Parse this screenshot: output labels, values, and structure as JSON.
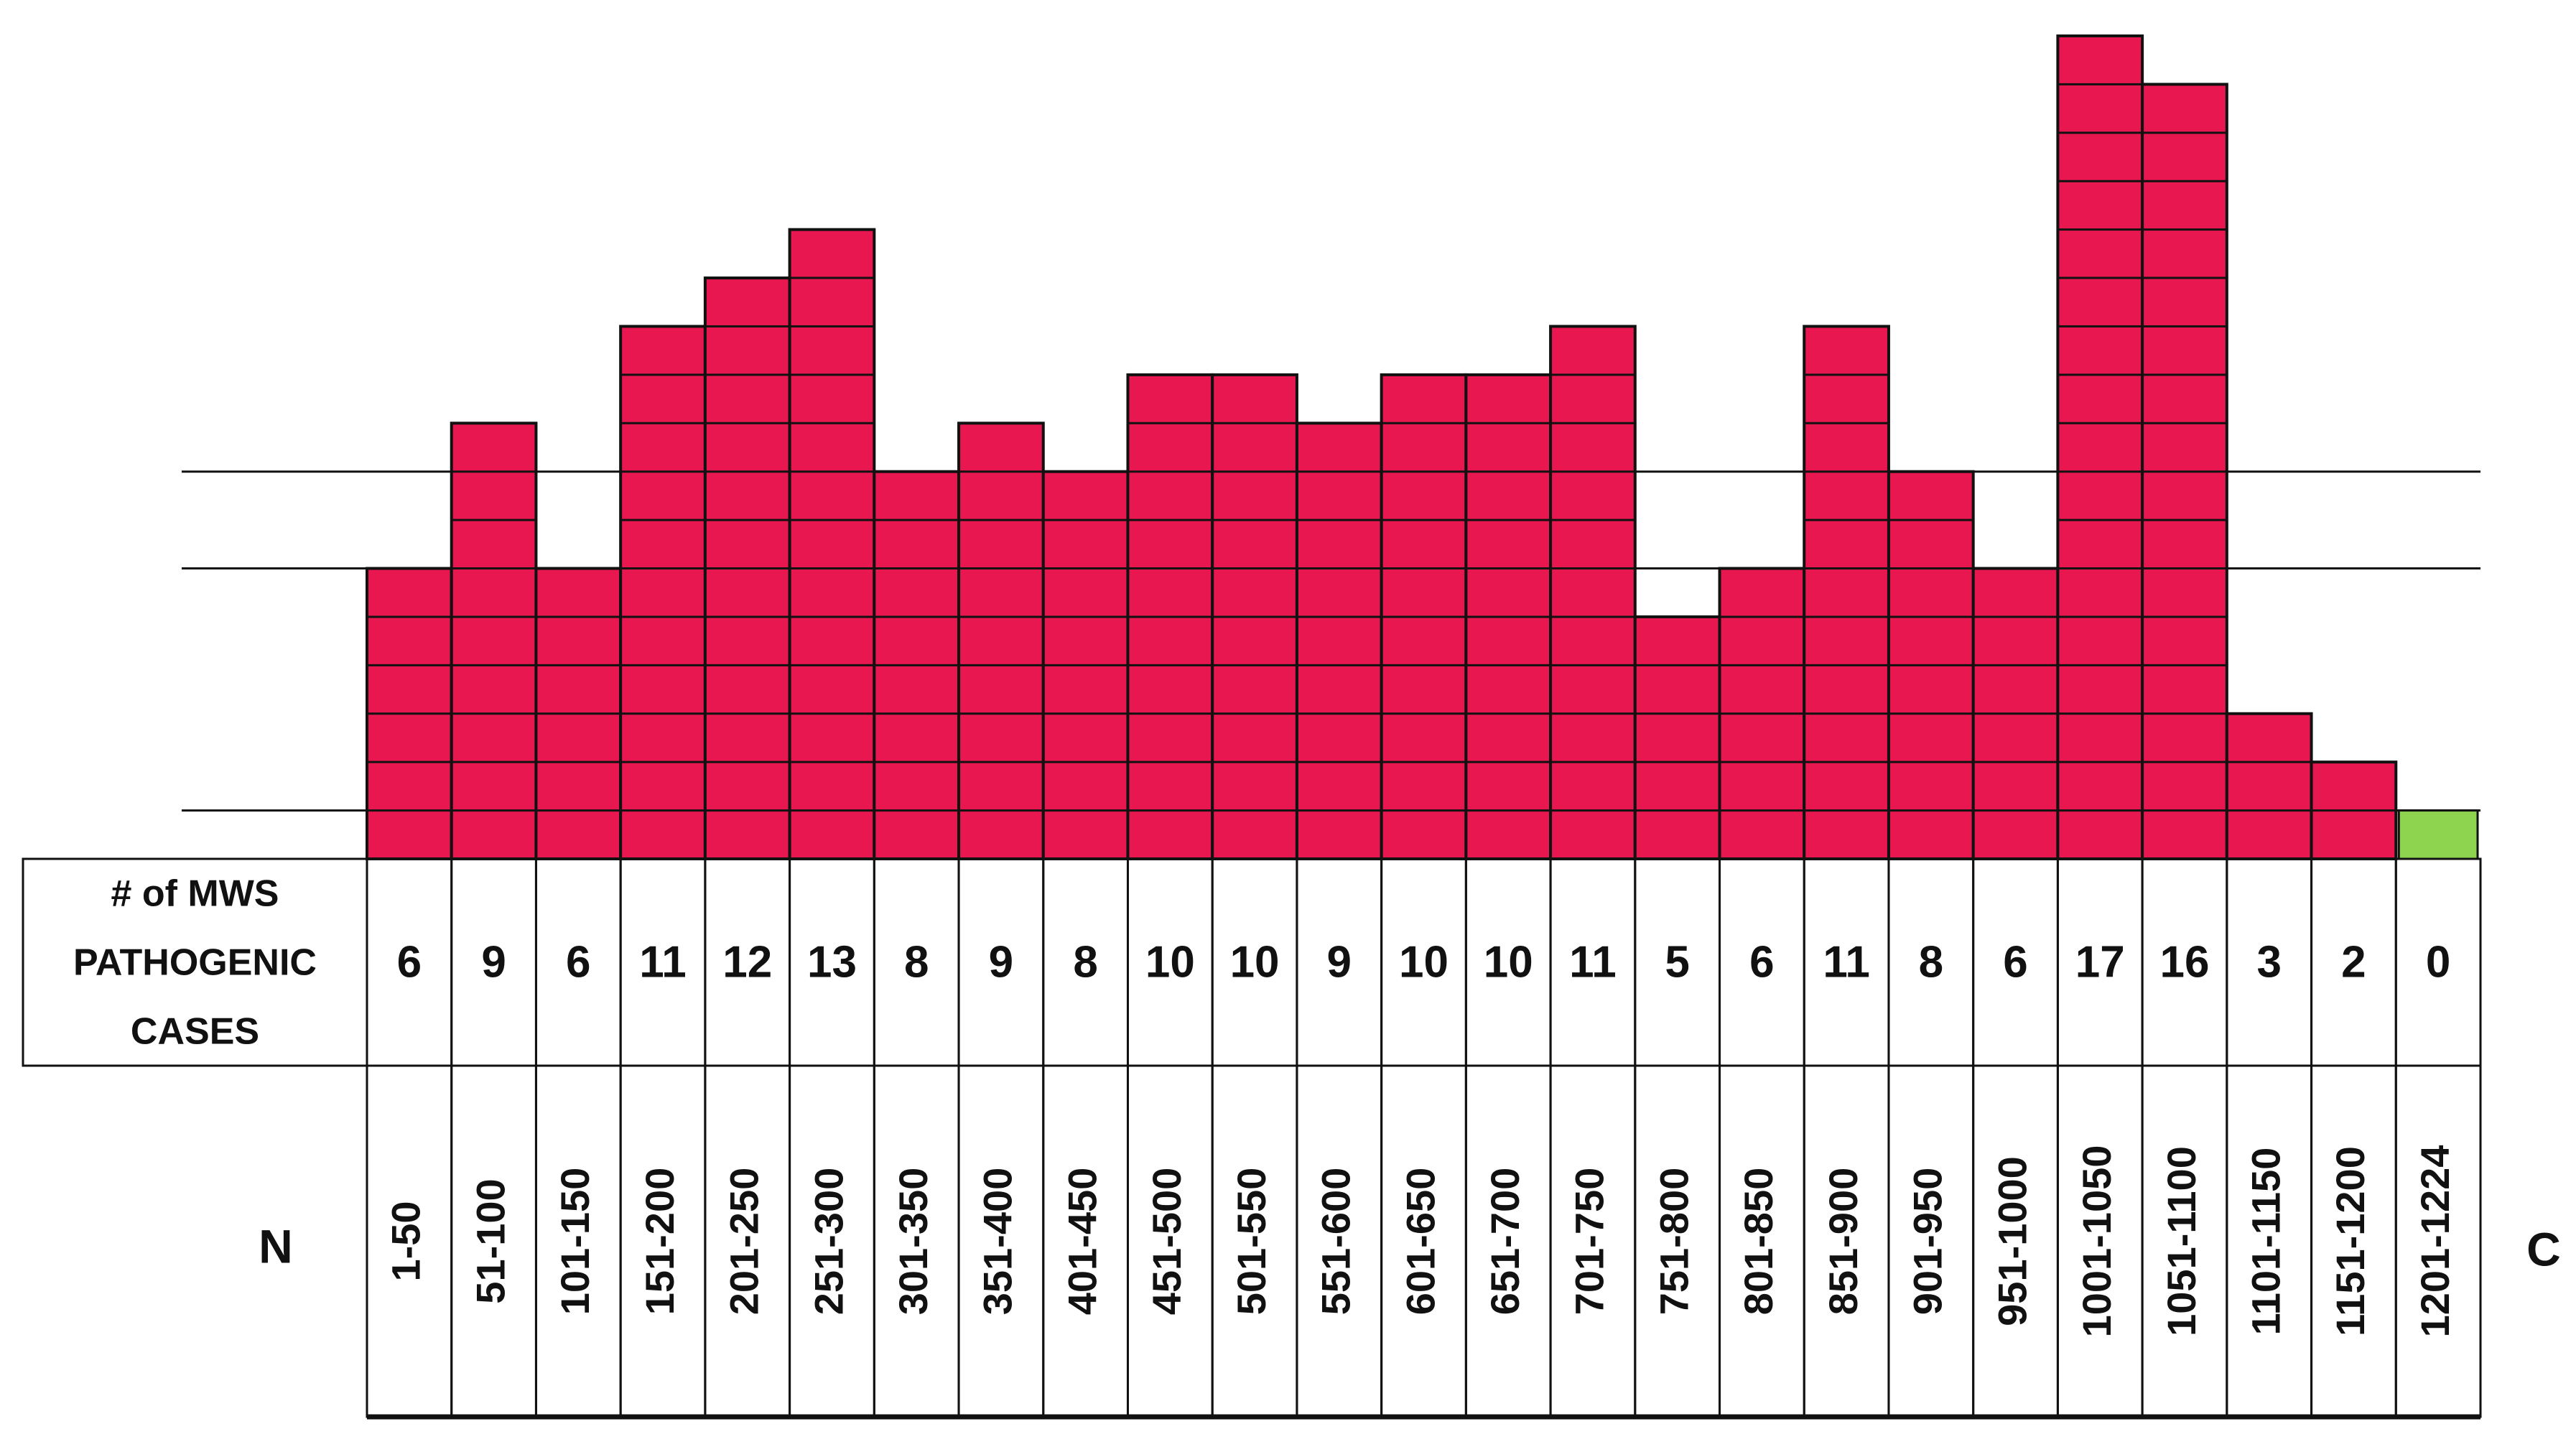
{
  "chart_data": {
    "type": "block-bar",
    "row_header": [
      "# of MWS",
      "PATHOGENIC",
      "CASES"
    ],
    "start_label": "N",
    "end_label": "C",
    "categories": [
      "1-50",
      "51-100",
      "101-150",
      "151-200",
      "201-250",
      "251-300",
      "301-350",
      "351-400",
      "401-450",
      "451-500",
      "501-550",
      "551-600",
      "601-650",
      "651-700",
      "701-750",
      "751-800",
      "801-850",
      "851-900",
      "901-950",
      "951-1000",
      "1001-1050",
      "1051-1100",
      "1101-1150",
      "1151-1200",
      "1201-1224"
    ],
    "values": [
      6,
      9,
      6,
      11,
      12,
      13,
      8,
      9,
      8,
      10,
      10,
      9,
      10,
      10,
      11,
      5,
      6,
      11,
      8,
      6,
      17,
      16,
      3,
      2,
      0
    ],
    "color": "#e8174f",
    "zero_color": "#8fd44f",
    "ylim": [
      0,
      17
    ],
    "reference_lines": [
      1,
      6,
      8
    ]
  }
}
